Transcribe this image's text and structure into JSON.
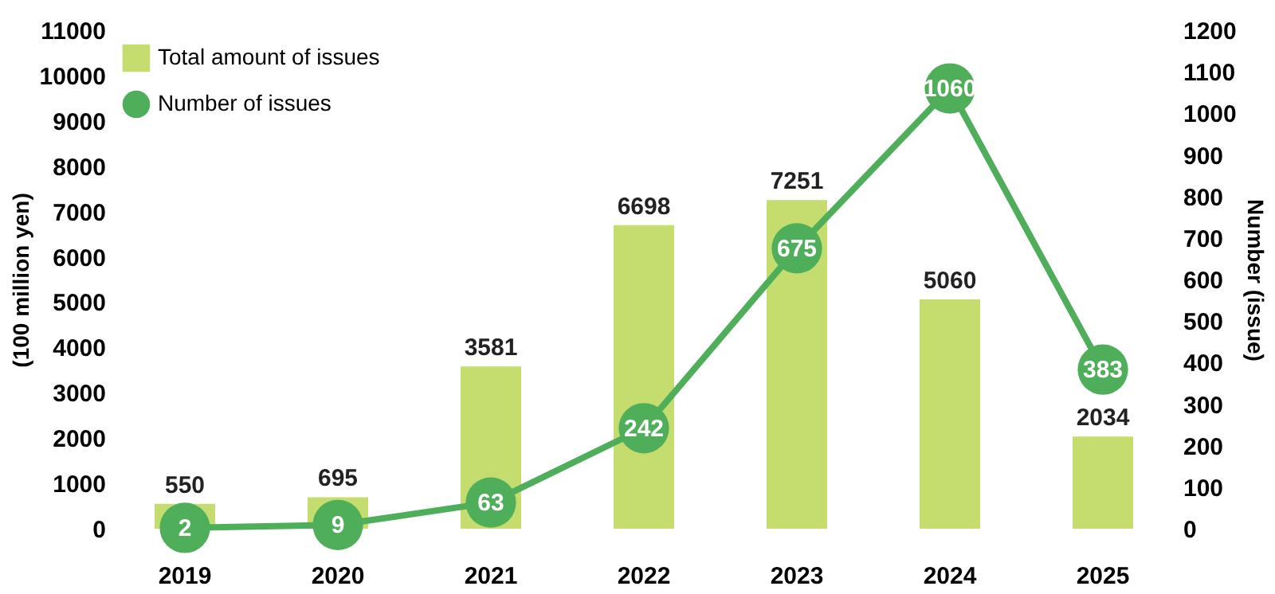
{
  "chart_data": {
    "type": "bar",
    "categories": [
      "2019",
      "2020",
      "2021",
      "2022",
      "2023",
      "2024",
      "2025"
    ],
    "series": [
      {
        "name": "Total amount of issues",
        "type": "bar",
        "color": "#c5dc6e",
        "values": [
          550,
          695,
          3581,
          6698,
          7251,
          5060,
          2034
        ]
      },
      {
        "name": "Number of issues",
        "type": "line",
        "axis": "y2",
        "color": "#4fae5a",
        "values": [
          2,
          9,
          63,
          242,
          675,
          1060,
          383
        ]
      }
    ],
    "ylabel": "(100 million yen)",
    "y2label": "Number (issue)",
    "ylim": [
      0,
      11000
    ],
    "yticks": [
      0,
      1000,
      2000,
      3000,
      4000,
      5000,
      6000,
      7000,
      8000,
      9000,
      10000,
      11000
    ],
    "y2lim": [
      0,
      1200
    ],
    "y2ticks": [
      0,
      100,
      200,
      300,
      400,
      500,
      600,
      700,
      800,
      900,
      1000,
      1100,
      1200
    ],
    "legend": "top left",
    "data_labels": true,
    "marker": "circle",
    "grid": false
  }
}
